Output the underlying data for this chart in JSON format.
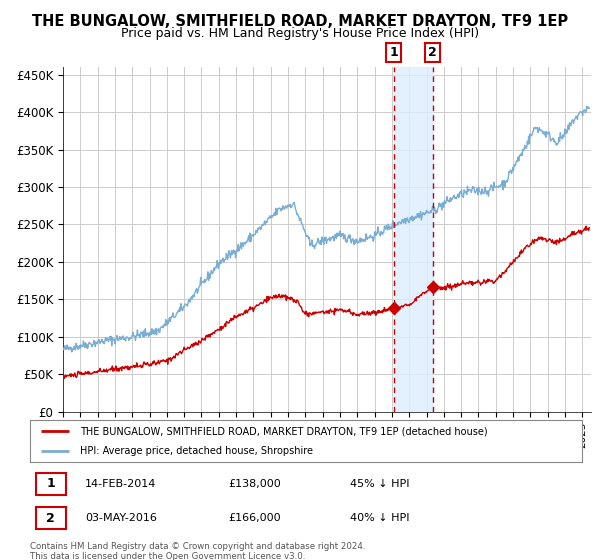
{
  "title": "THE BUNGALOW, SMITHFIELD ROAD, MARKET DRAYTON, TF9 1EP",
  "subtitle": "Price paid vs. HM Land Registry's House Price Index (HPI)",
  "legend_label_red": "THE BUNGALOW, SMITHFIELD ROAD, MARKET DRAYTON, TF9 1EP (detached house)",
  "legend_label_blue": "HPI: Average price, detached house, Shropshire",
  "annotation1_label": "1",
  "annotation1_date": "14-FEB-2014",
  "annotation1_price": "£138,000",
  "annotation1_hpi": "45% ↓ HPI",
  "annotation2_label": "2",
  "annotation2_date": "03-MAY-2016",
  "annotation2_price": "£166,000",
  "annotation2_hpi": "40% ↓ HPI",
  "footer": "Contains HM Land Registry data © Crown copyright and database right 2024.\nThis data is licensed under the Open Government Licence v3.0.",
  "vline1_year": 2014.12,
  "vline2_year": 2016.35,
  "sale1_value": 138000,
  "sale2_value": 166000,
  "ylim": [
    0,
    460000
  ],
  "xlim_start": 1995.0,
  "xlim_end": 2025.5,
  "yticks": [
    0,
    50000,
    100000,
    150000,
    200000,
    250000,
    300000,
    350000,
    400000,
    450000
  ],
  "background_color": "#ffffff",
  "plot_bg_color": "#ffffff",
  "grid_color": "#cccccc",
  "red_color": "#cc0000",
  "blue_color": "#7aadd4",
  "shade_color": "#ddeeff",
  "title_fontsize": 10.5,
  "subtitle_fontsize": 9
}
